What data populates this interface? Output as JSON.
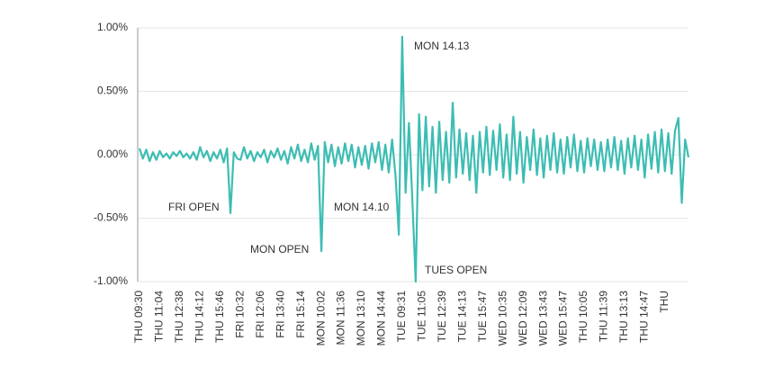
{
  "chart_data": {
    "type": "line",
    "categories": [
      "THU 09:30",
      null,
      null,
      null,
      null,
      null,
      "THU 11:04",
      null,
      null,
      null,
      null,
      null,
      "THU 12:38",
      null,
      null,
      null,
      null,
      null,
      "THU 14:12",
      null,
      null,
      null,
      null,
      null,
      "THU 15:46",
      null,
      null,
      null,
      null,
      null,
      "FRI 10:32",
      null,
      null,
      null,
      null,
      null,
      "FRI 12:06",
      null,
      null,
      null,
      null,
      null,
      "FRI 13:40",
      null,
      null,
      null,
      null,
      null,
      "FRI 15:14",
      null,
      null,
      null,
      null,
      null,
      "MON 10:02",
      null,
      null,
      null,
      null,
      null,
      "MON 11:36",
      null,
      null,
      null,
      null,
      null,
      "MON 13:10",
      null,
      null,
      null,
      null,
      null,
      "MON 14:44",
      null,
      null,
      null,
      null,
      null,
      "TUE 09:31",
      null,
      null,
      null,
      null,
      null,
      "TUE 11:05",
      null,
      null,
      null,
      null,
      null,
      "TUE 12:39",
      null,
      null,
      null,
      null,
      null,
      "TUE 14:13",
      null,
      null,
      null,
      null,
      null,
      "TUE 15:47",
      null,
      null,
      null,
      null,
      null,
      "WED 10:35",
      null,
      null,
      null,
      null,
      null,
      "WED 12:09",
      null,
      null,
      null,
      null,
      null,
      "WED 13:43",
      null,
      null,
      null,
      null,
      null,
      "WED 15:47",
      null,
      null,
      null,
      null,
      null,
      "THU 10:05",
      null,
      null,
      null,
      null,
      null,
      "THU 11:39",
      null,
      null,
      null,
      null,
      null,
      "THU 13:13",
      null,
      null,
      null,
      null,
      null,
      "THU 14:47",
      null,
      null,
      null,
      null,
      null,
      "THU",
      null,
      null,
      null,
      null,
      null,
      null,
      null
    ],
    "series": [
      {
        "color": "#3dbdb3",
        "values": [
          0.05,
          -0.03,
          0.04,
          -0.05,
          0.02,
          -0.04,
          0.03,
          -0.02,
          0.01,
          -0.03,
          0.02,
          -0.01,
          0.03,
          -0.02,
          0.01,
          -0.03,
          0.02,
          -0.04,
          0.06,
          -0.02,
          0.03,
          -0.05,
          0.02,
          -0.03,
          0.04,
          -0.06,
          0.05,
          -0.46,
          0.02,
          -0.03,
          -0.04,
          0.06,
          -0.03,
          0.03,
          -0.05,
          0.02,
          -0.02,
          0.04,
          -0.06,
          0.03,
          -0.02,
          0.05,
          -0.04,
          0.03,
          -0.07,
          0.06,
          -0.03,
          0.08,
          -0.05,
          0.04,
          -0.06,
          0.09,
          -0.04,
          0.07,
          -0.76,
          0.1,
          -0.06,
          0.08,
          -0.09,
          0.06,
          -0.07,
          0.09,
          -0.05,
          0.08,
          -0.1,
          0.06,
          -0.08,
          0.07,
          -0.11,
          0.09,
          -0.06,
          0.1,
          -0.12,
          0.08,
          -0.14,
          0.12,
          -0.16,
          -0.63,
          0.93,
          -0.3,
          0.25,
          -0.35,
          -1.0,
          0.32,
          -0.28,
          0.3,
          -0.25,
          0.22,
          -0.3,
          0.26,
          -0.2,
          0.18,
          -0.22,
          0.41,
          -0.18,
          0.2,
          -0.15,
          0.17,
          -0.2,
          0.15,
          -0.3,
          0.18,
          -0.14,
          0.22,
          -0.16,
          0.19,
          -0.12,
          0.24,
          -0.18,
          0.16,
          -0.2,
          0.3,
          -0.15,
          0.18,
          -0.22,
          0.14,
          -0.12,
          0.2,
          -0.16,
          0.13,
          -0.18,
          0.15,
          -0.12,
          0.17,
          -0.14,
          0.12,
          -0.15,
          0.14,
          -0.1,
          0.16,
          -0.13,
          0.11,
          -0.14,
          0.13,
          -0.09,
          0.12,
          -0.12,
          0.1,
          -0.13,
          0.12,
          -0.1,
          0.14,
          -0.12,
          0.11,
          -0.15,
          0.13,
          -0.1,
          0.15,
          -0.12,
          0.12,
          -0.18,
          0.16,
          -0.11,
          0.18,
          -0.14,
          0.2,
          -0.13,
          0.17,
          -0.15,
          0.19,
          0.29,
          -0.38,
          0.12,
          -0.02
        ]
      }
    ],
    "ylim": [
      -1,
      1
    ],
    "yticks": [
      {
        "value": 1,
        "label": "1.00%"
      },
      {
        "value": 0.5,
        "label": "0.50%"
      },
      {
        "value": 0,
        "label": "0.00%"
      },
      {
        "value": -0.5,
        "label": "-0.50%"
      },
      {
        "value": -1,
        "label": "-1.00%"
      }
    ],
    "grid": true,
    "annotations": [
      "MON 14.13",
      "FRI OPEN",
      "MON OPEN",
      "MON 14.10",
      "TUES OPEN"
    ]
  }
}
